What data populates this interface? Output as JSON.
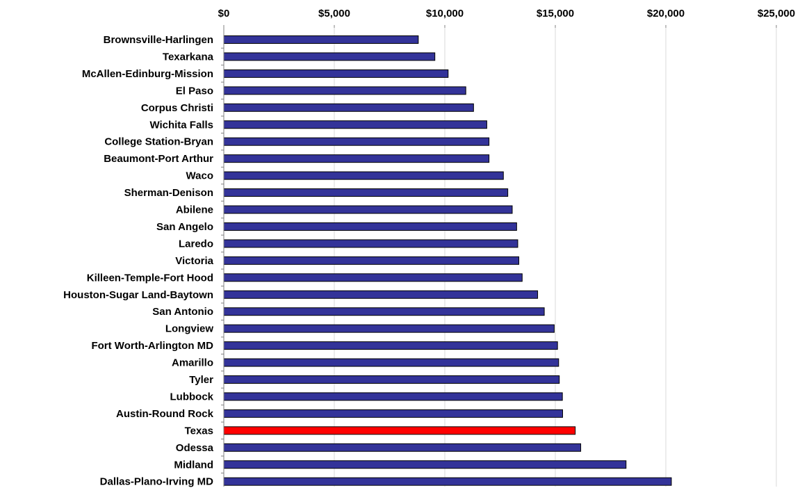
{
  "chart_data": {
    "type": "bar",
    "orientation": "horizontal",
    "x_axis_position": "top",
    "xlim": [
      0,
      25000
    ],
    "x_ticks": [
      0,
      5000,
      10000,
      15000,
      20000,
      25000
    ],
    "x_tick_labels": [
      "$0",
      "$5,000",
      "$10,000",
      "$15,000",
      "$20,000",
      "$25,000"
    ],
    "grid": true,
    "bar_color": "#333399",
    "highlight_color": "#ff0000",
    "highlight_category": "Texas",
    "categories": [
      "Brownsville-Harlingen",
      "Texarkana",
      "McAllen-Edinburg-Mission",
      "El Paso",
      "Corpus Christi",
      "Wichita Falls",
      "College Station-Bryan",
      "Beaumont-Port Arthur",
      "Waco",
      "Sherman-Denison",
      "Abilene",
      "San Angelo",
      "Laredo",
      "Victoria",
      "Killeen-Temple-Fort Hood",
      "Houston-Sugar Land-Baytown",
      "San Antonio",
      "Longview",
      "Fort Worth-Arlington MD",
      "Amarillo",
      "Tyler",
      "Lubbock",
      "Austin-Round Rock",
      "Texas",
      "Odessa",
      "Midland",
      "Dallas-Plano-Irving MD"
    ],
    "values": [
      8800,
      9550,
      10150,
      10950,
      11300,
      11900,
      12000,
      12000,
      12650,
      12850,
      13050,
      13250,
      13300,
      13350,
      13500,
      14200,
      14500,
      14950,
      15100,
      15150,
      15180,
      15320,
      15330,
      15900,
      16150,
      18200,
      20250
    ]
  }
}
